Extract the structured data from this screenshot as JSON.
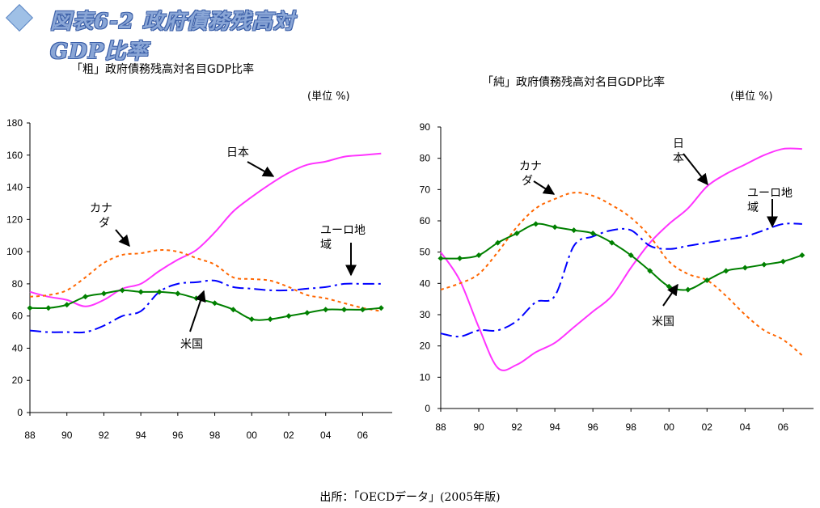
{
  "header": {
    "title": "図表6-2 政府債務残高対GDP比率",
    "icon": "diamond-icon"
  },
  "source": "出所：「OECDデータ」(2005年版)",
  "colors": {
    "japan": "#ff33ff",
    "canada": "#ff6600",
    "euro": "#0000ff",
    "us": "#008000"
  },
  "chart_data": [
    {
      "type": "line",
      "title": "「粗」政府債務残高対名目GDP比率",
      "unit": "(単位 %)",
      "x": [
        1988,
        1989,
        1990,
        1991,
        1992,
        1993,
        1994,
        1995,
        1996,
        1997,
        1998,
        1999,
        2000,
        2001,
        2002,
        2003,
        2004,
        2005,
        2006,
        2007
      ],
      "xticks": [
        "88",
        "90",
        "92",
        "94",
        "96",
        "98",
        "00",
        "02",
        "04",
        "06"
      ],
      "ylim": [
        0,
        180
      ],
      "yticks": [
        "0",
        "20",
        "40",
        "60",
        "80",
        "100",
        "120",
        "140",
        "160",
        "180"
      ],
      "series": [
        {
          "name": "日本",
          "color": "#ff33ff",
          "style": "solid",
          "markers": false,
          "values": [
            75,
            72,
            70,
            66,
            70,
            77,
            80,
            88,
            95,
            101,
            112,
            125,
            134,
            142,
            149,
            154,
            156,
            159,
            160,
            161
          ]
        },
        {
          "name": "カナダ",
          "color": "#ff6600",
          "style": "dotted",
          "markers": false,
          "values": [
            72,
            73,
            76,
            84,
            93,
            98,
            99,
            101,
            100,
            96,
            92,
            84,
            83,
            82,
            78,
            73,
            71,
            68,
            65,
            63
          ]
        },
        {
          "name": "ユーロ地域",
          "color": "#0000ff",
          "style": "dashdot",
          "markers": false,
          "values": [
            51,
            50,
            50,
            50,
            54,
            60,
            63,
            75,
            80,
            81,
            82,
            78,
            77,
            76,
            76,
            77,
            78,
            80,
            80,
            80
          ]
        },
        {
          "name": "米国",
          "color": "#008000",
          "style": "solid",
          "markers": true,
          "values": [
            65,
            65,
            67,
            72,
            74,
            76,
            75,
            75,
            74,
            71,
            68,
            64,
            58,
            58,
            60,
            62,
            64,
            64,
            64,
            65
          ]
        }
      ],
      "annotations": [
        {
          "text": "日本"
        },
        {
          "text": "カナ\nダ"
        },
        {
          "text": "ユーロ地\n域"
        },
        {
          "text": "米国"
        }
      ]
    },
    {
      "type": "line",
      "title": "「純」政府債務残高対名目GDP比率",
      "unit": "(単位 %)",
      "x": [
        1988,
        1989,
        1990,
        1991,
        1992,
        1993,
        1994,
        1995,
        1996,
        1997,
        1998,
        1999,
        2000,
        2001,
        2002,
        2003,
        2004,
        2005,
        2006,
        2007
      ],
      "xticks": [
        "88",
        "90",
        "92",
        "94",
        "96",
        "98",
        "00",
        "02",
        "04",
        "06"
      ],
      "ylim": [
        0,
        90
      ],
      "yticks": [
        "0",
        "10",
        "20",
        "30",
        "40",
        "50",
        "60",
        "70",
        "80",
        "90"
      ],
      "series": [
        {
          "name": "日本",
          "color": "#ff33ff",
          "style": "solid",
          "markers": false,
          "values": [
            50,
            41,
            26,
            13,
            14,
            18,
            21,
            26,
            31,
            36,
            45,
            53,
            59,
            64,
            71,
            75,
            78,
            81,
            83,
            83
          ]
        },
        {
          "name": "カナダ",
          "color": "#ff6600",
          "style": "dotted",
          "markers": false,
          "values": [
            38,
            40,
            43,
            50,
            58,
            64,
            67,
            69,
            68,
            65,
            61,
            55,
            47,
            43,
            41,
            36,
            30,
            25,
            22,
            17
          ]
        },
        {
          "name": "ユーロ地域",
          "color": "#0000ff",
          "style": "dashdot",
          "markers": false,
          "values": [
            24,
            23,
            25,
            25,
            28,
            34,
            36,
            52,
            55,
            57,
            57,
            52,
            51,
            52,
            53,
            54,
            55,
            57,
            59,
            59
          ]
        },
        {
          "name": "米国",
          "color": "#008000",
          "style": "solid",
          "markers": true,
          "values": [
            48,
            48,
            49,
            53,
            56,
            59,
            58,
            57,
            56,
            53,
            49,
            44,
            39,
            38,
            41,
            44,
            45,
            46,
            47,
            49
          ]
        }
      ],
      "annotations": [
        {
          "text": "日\n本"
        },
        {
          "text": "カナ\nダ"
        },
        {
          "text": "ユーロ地\n域"
        },
        {
          "text": "米国"
        }
      ]
    }
  ]
}
